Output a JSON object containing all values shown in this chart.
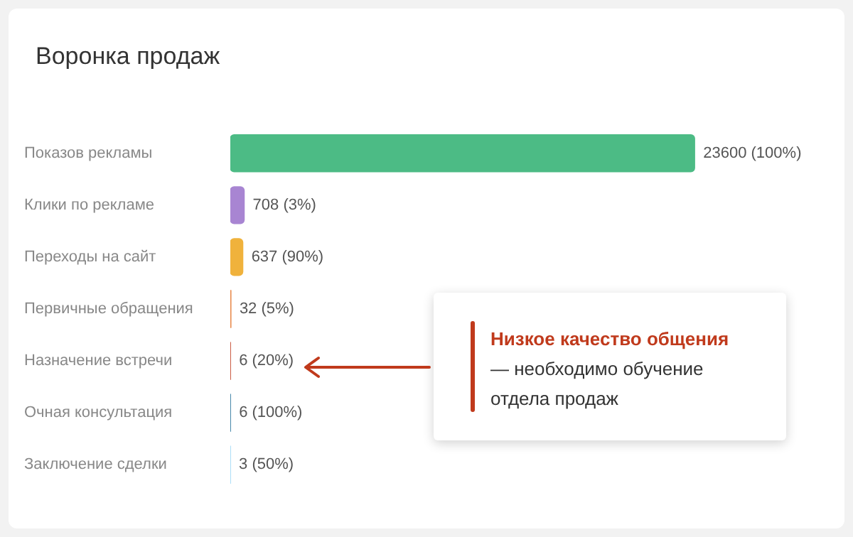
{
  "chart_data": {
    "type": "bar",
    "orientation": "horizontal",
    "title": "Воронка продаж",
    "categories": [
      "Показов рекламы",
      "Клики по рекламе",
      "Переходы на сайт",
      "Первичные обращения",
      "Назначение встречи",
      "Очная консультация",
      "Заключение сделки"
    ],
    "values": [
      23600,
      708,
      637,
      32,
      6,
      6,
      3
    ],
    "colors": [
      "#4cbb85",
      "#a885d2",
      "#f0b23c",
      "#e8894a",
      "#c03a1c",
      "#1f6e98",
      "#8fd3f6"
    ],
    "value_labels": [
      "23600 (100%)",
      "708 (3%)",
      "637 (90%)",
      "32 (5%)",
      "6 (20%)",
      "6 (100%)",
      "3 (50%)"
    ],
    "annotations": [
      "Низкое качество общения",
      "— необходимо обучение отдела продаж"
    ],
    "grid": false,
    "legend": false
  }
}
